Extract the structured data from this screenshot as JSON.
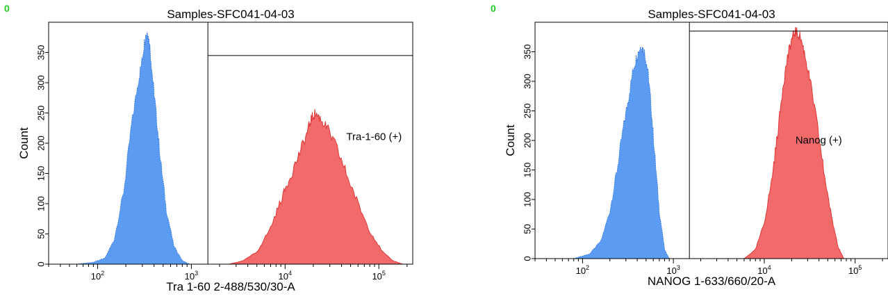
{
  "chart_data": [
    {
      "type": "area",
      "corner_label": "0",
      "title": "Samples-SFC041-04-03",
      "xlabel": "Tra 1-60 2-488/530/30-A",
      "ylabel": "Count",
      "xscale": "log",
      "xlim": [
        30,
        230000
      ],
      "ylim": [
        0,
        400
      ],
      "x_tick_labels": [
        "10^2",
        "10^3",
        "10^4",
        "10^5"
      ],
      "x_tick_values": [
        100,
        1000,
        10000,
        100000
      ],
      "y_tick_labels": [
        "0",
        "50",
        "100",
        "150",
        "200",
        "250",
        "300",
        "350"
      ],
      "y_tick_values": [
        0,
        50,
        100,
        150,
        200,
        250,
        300,
        350
      ],
      "gate": {
        "label": "Tra-1-60 (+)",
        "x_start": 1500,
        "x_end": 230000,
        "bar_y": 345
      },
      "gate_label_at": {
        "x": 45000,
        "y": 205
      },
      "series": [
        {
          "color": "#5b9cf2",
          "edge": "#3a7be0",
          "x": [
            60,
            90,
            120,
            150,
            190,
            230,
            270,
            300,
            320,
            340,
            360,
            390,
            420,
            470,
            540,
            650,
            800,
            950
          ],
          "y": [
            0,
            3,
            10,
            40,
            120,
            230,
            300,
            340,
            375,
            385,
            360,
            300,
            250,
            170,
            90,
            30,
            6,
            0
          ]
        },
        {
          "color": "#f26a6a",
          "edge": "#e03838",
          "x": [
            2500,
            3500,
            5000,
            7000,
            9000,
            11000,
            14000,
            17000,
            19000,
            21000,
            24000,
            28000,
            35000,
            45000,
            60000,
            80000,
            110000,
            140000,
            180000
          ],
          "y": [
            0,
            5,
            20,
            60,
            105,
            140,
            180,
            215,
            240,
            250,
            240,
            225,
            195,
            150,
            100,
            55,
            20,
            6,
            0
          ]
        }
      ]
    },
    {
      "type": "area",
      "corner_label": "0",
      "title": "Samples-SFC041-04-03",
      "xlabel": "NANOG 1-633/660/20-A",
      "ylabel": "Count",
      "xscale": "log",
      "xlim": [
        30,
        230000
      ],
      "ylim": [
        0,
        400
      ],
      "x_tick_labels": [
        "10^2",
        "10^3",
        "10^4",
        "10^5"
      ],
      "x_tick_values": [
        100,
        1000,
        10000,
        100000
      ],
      "y_tick_labels": [
        "0",
        "50",
        "100",
        "150",
        "200",
        "250",
        "300",
        "350"
      ],
      "y_tick_values": [
        0,
        50,
        100,
        150,
        200,
        250,
        300,
        350
      ],
      "gate": {
        "label": "Nanog (+)",
        "x_start": 1500,
        "x_end": 230000,
        "bar_y": 385
      },
      "gate_label_at": {
        "x": 22000,
        "y": 195
      },
      "series": [
        {
          "color": "#5b9cf2",
          "edge": "#3a7be0",
          "x": [
            80,
            120,
            160,
            200,
            240,
            280,
            320,
            360,
            400,
            440,
            480,
            520,
            560,
            620,
            700,
            800,
            900
          ],
          "y": [
            0,
            8,
            30,
            80,
            150,
            220,
            270,
            320,
            345,
            360,
            350,
            320,
            270,
            180,
            80,
            15,
            0
          ]
        },
        {
          "color": "#f26a6a",
          "edge": "#e03838",
          "x": [
            6000,
            8000,
            10000,
            12000,
            14000,
            16000,
            18000,
            20000,
            22000,
            25000,
            28000,
            32000,
            38000,
            45000,
            55000,
            65000,
            75000
          ],
          "y": [
            0,
            15,
            60,
            130,
            210,
            290,
            340,
            370,
            385,
            375,
            345,
            300,
            230,
            150,
            70,
            20,
            0
          ]
        }
      ]
    }
  ]
}
